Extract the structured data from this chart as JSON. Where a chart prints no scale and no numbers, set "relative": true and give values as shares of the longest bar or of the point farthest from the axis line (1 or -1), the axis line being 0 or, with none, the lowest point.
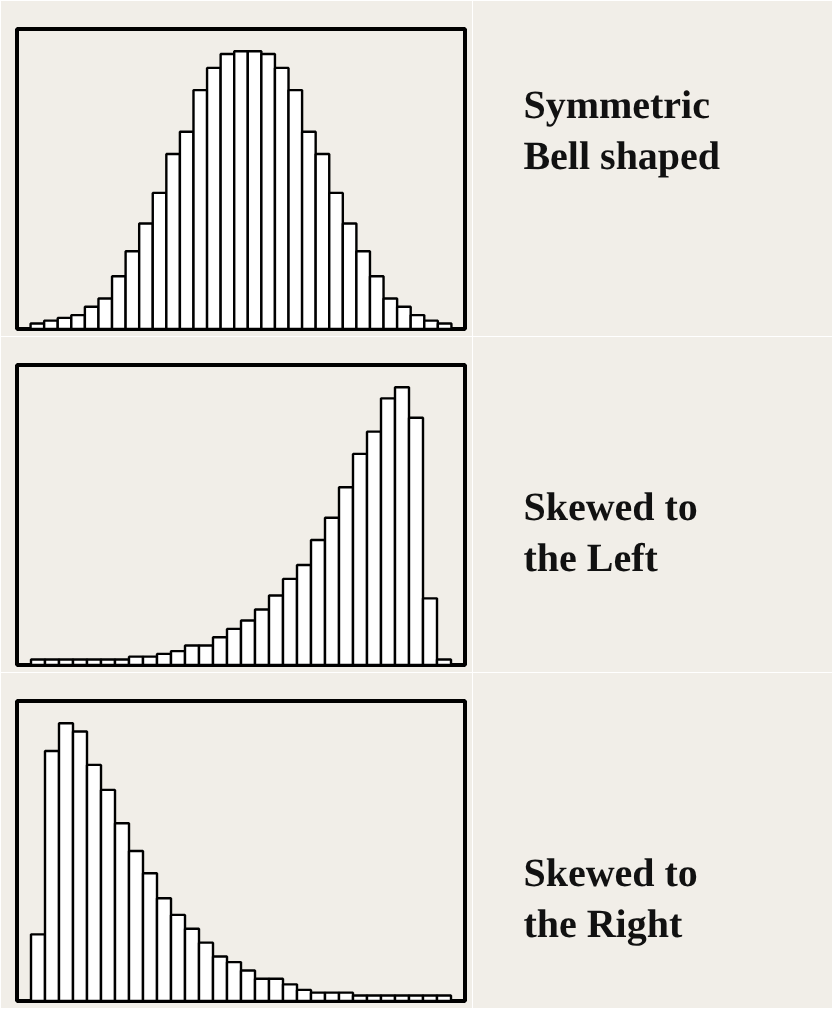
{
  "chart_data": [
    {
      "type": "bar",
      "relative": true,
      "categories": [
        null,
        null,
        null,
        null,
        null,
        null,
        null,
        null,
        null,
        null,
        null,
        null,
        null,
        null,
        null,
        null,
        null,
        null,
        null,
        null,
        null,
        null,
        null,
        null,
        null,
        null,
        null,
        null,
        null,
        null,
        null
      ],
      "color": "#ffffff",
      "values": [
        0.02,
        0.03,
        0.04,
        0.05,
        0.08,
        0.11,
        0.19,
        0.28,
        0.38,
        0.49,
        0.63,
        0.71,
        0.86,
        0.94,
        0.99,
        1,
        1,
        0.99,
        0.94,
        0.86,
        0.71,
        0.63,
        0.49,
        0.38,
        0.28,
        0.19,
        0.11,
        0.08,
        0.05,
        0.03,
        0.02
      ],
      "annotations": [
        "Symmetric",
        "Bell shaped"
      ]
    },
    {
      "type": "bar",
      "relative": true,
      "categories": [
        null,
        null,
        null,
        null,
        null,
        null,
        null,
        null,
        null,
        null,
        null,
        null,
        null,
        null,
        null,
        null,
        null,
        null,
        null,
        null,
        null,
        null,
        null,
        null,
        null,
        null,
        null,
        null,
        null,
        null
      ],
      "color": "#ffffff",
      "values": [
        0.02,
        0.02,
        0.02,
        0.02,
        0.02,
        0.02,
        0.02,
        0.03,
        0.03,
        0.04,
        0.05,
        0.07,
        0.07,
        0.1,
        0.13,
        0.16,
        0.2,
        0.25,
        0.31,
        0.36,
        0.45,
        0.53,
        0.64,
        0.76,
        0.84,
        0.96,
        1,
        0.89,
        0.24,
        0.02
      ],
      "annotations": [
        "Skewed to",
        "the Left"
      ]
    },
    {
      "type": "bar",
      "relative": true,
      "categories": [
        null,
        null,
        null,
        null,
        null,
        null,
        null,
        null,
        null,
        null,
        null,
        null,
        null,
        null,
        null,
        null,
        null,
        null,
        null,
        null,
        null,
        null,
        null,
        null,
        null,
        null,
        null,
        null,
        null,
        null
      ],
      "color": "#ffffff",
      "values": [
        0.24,
        0.9,
        1,
        0.97,
        0.85,
        0.76,
        0.64,
        0.54,
        0.46,
        0.37,
        0.31,
        0.26,
        0.21,
        0.16,
        0.14,
        0.11,
        0.08,
        0.08,
        0.06,
        0.04,
        0.03,
        0.03,
        0.03,
        0.02,
        0.02,
        0.02,
        0.02,
        0.02,
        0.02,
        0.02
      ],
      "annotations": [
        "Skewed to",
        "the Right"
      ]
    }
  ]
}
